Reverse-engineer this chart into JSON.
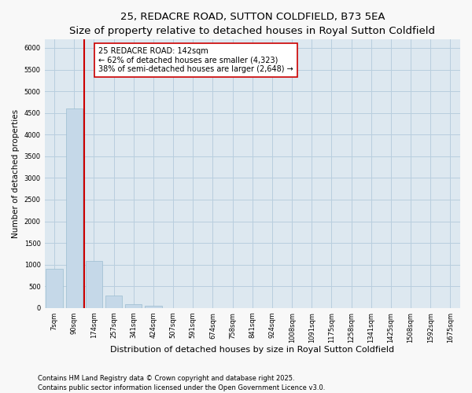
{
  "title": "25, REDACRE ROAD, SUTTON COLDFIELD, B73 5EA",
  "subtitle": "Size of property relative to detached houses in Royal Sutton Coldfield",
  "xlabel": "Distribution of detached houses by size in Royal Sutton Coldfield",
  "ylabel": "Number of detached properties",
  "categories": [
    "7sqm",
    "90sqm",
    "174sqm",
    "257sqm",
    "341sqm",
    "424sqm",
    "507sqm",
    "591sqm",
    "674sqm",
    "758sqm",
    "841sqm",
    "924sqm",
    "1008sqm",
    "1091sqm",
    "1175sqm",
    "1258sqm",
    "1341sqm",
    "1425sqm",
    "1508sqm",
    "1592sqm",
    "1675sqm"
  ],
  "values": [
    900,
    4600,
    1080,
    290,
    90,
    55,
    0,
    0,
    0,
    0,
    0,
    0,
    0,
    0,
    0,
    0,
    0,
    0,
    0,
    0,
    0
  ],
  "bar_color": "#c5d8e8",
  "bar_edge_color": "#9bbdd0",
  "vline_color": "#cc0000",
  "annotation_text": "25 REDACRE ROAD: 142sqm\n← 62% of detached houses are smaller (4,323)\n38% of semi-detached houses are larger (2,648) →",
  "annotation_box_facecolor": "white",
  "annotation_box_edgecolor": "#cc0000",
  "ylim": [
    0,
    6200
  ],
  "yticks": [
    0,
    500,
    1000,
    1500,
    2000,
    2500,
    3000,
    3500,
    4000,
    4500,
    5000,
    5500,
    6000
  ],
  "fig_bg_color": "#f8f8f8",
  "plot_bg_color": "#dde8f0",
  "grid_color": "#b8cede",
  "footnote": "Contains HM Land Registry data © Crown copyright and database right 2025.\nContains public sector information licensed under the Open Government Licence v3.0.",
  "title_fontsize": 9.5,
  "subtitle_fontsize": 8.5,
  "xlabel_fontsize": 8,
  "ylabel_fontsize": 7.5,
  "tick_fontsize": 6,
  "annotation_fontsize": 7,
  "footnote_fontsize": 6
}
